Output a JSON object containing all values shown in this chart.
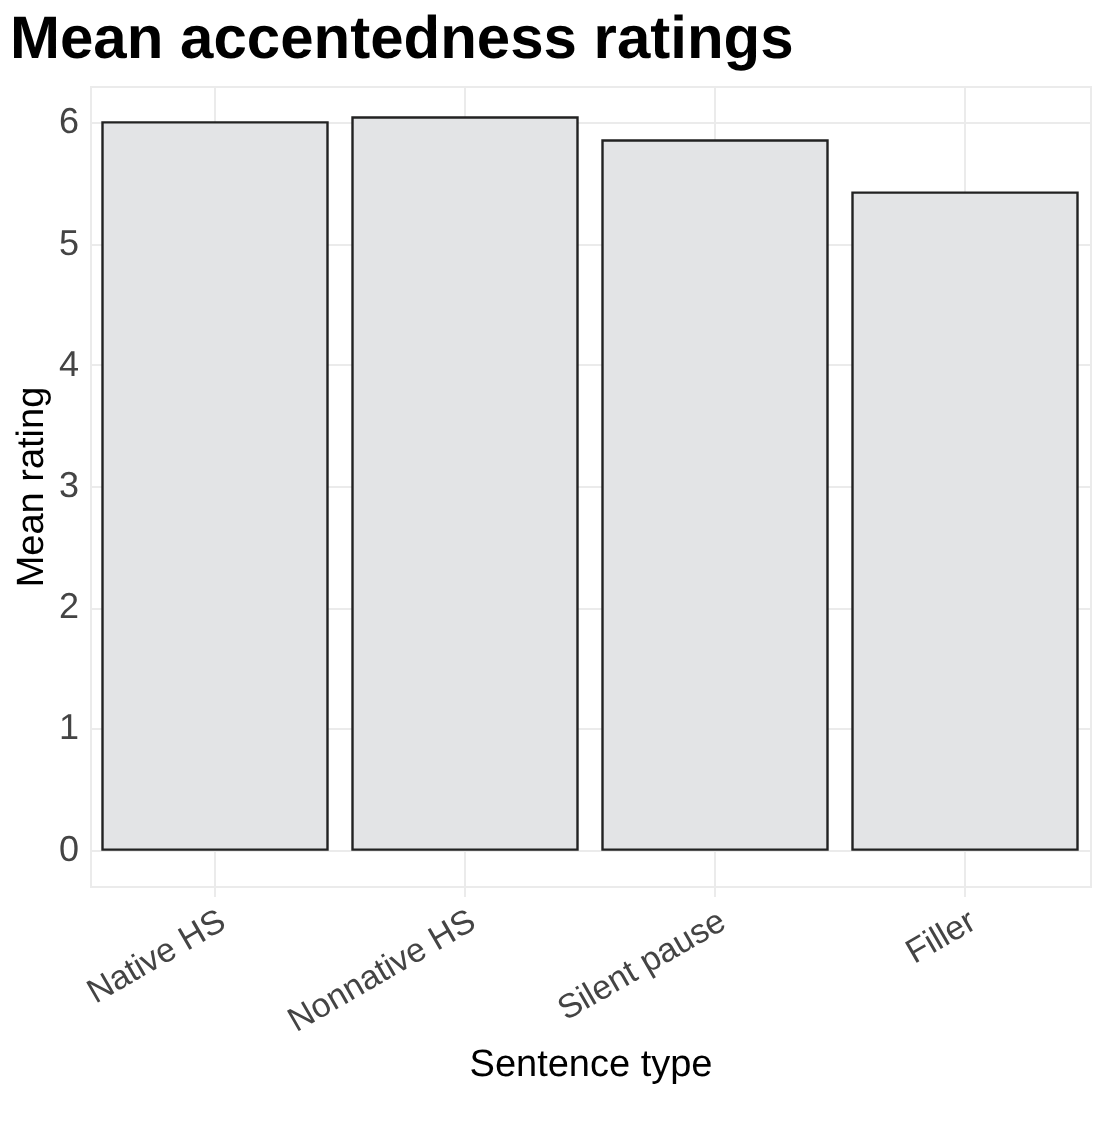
{
  "chart_data": {
    "type": "bar",
    "title": "Mean accentedness ratings",
    "xlabel": "Sentence type",
    "ylabel": "Mean rating",
    "categories": [
      "Native HS",
      "Nonnative HS",
      "Silent pause",
      "Filler"
    ],
    "values": [
      6.0,
      6.04,
      5.85,
      5.42
    ],
    "color": "#e3e4e6",
    "ylim": [
      -0.3,
      6.3
    ],
    "yticks": [
      0,
      1,
      2,
      3,
      4,
      5,
      6
    ],
    "grid": true
  }
}
